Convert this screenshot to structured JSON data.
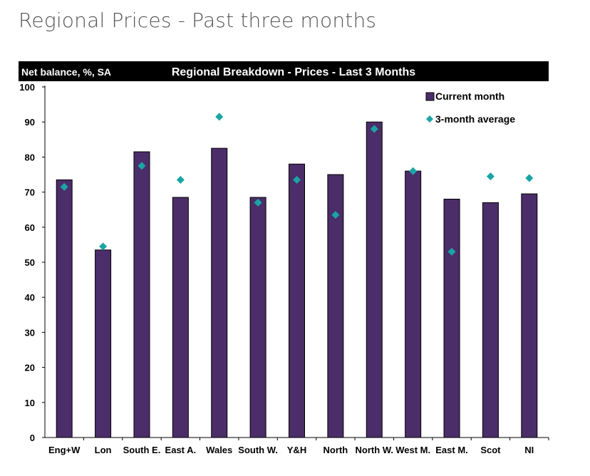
{
  "page_title": "Regional Prices - Past three months",
  "chart_data": {
    "type": "bar",
    "title": "Regional Breakdown - Prices - Last 3 Months",
    "ylabel": "Net balance, %, SA",
    "xlabel": "",
    "ylim": [
      0,
      100
    ],
    "yticks": [
      0,
      10,
      20,
      30,
      40,
      50,
      60,
      70,
      80,
      90,
      100
    ],
    "grid": false,
    "legend_position": "top-right",
    "categories": [
      "Eng+W",
      "Lon",
      "South E.",
      "East A.",
      "Wales",
      "South W.",
      "Y&H",
      "North",
      "North W.",
      "West M.",
      "East M.",
      "Scot",
      "NI"
    ],
    "series": [
      {
        "name": "Current month",
        "kind": "bar",
        "color": "#4b2d69",
        "values": [
          73.5,
          53.5,
          81.5,
          68.5,
          82.5,
          68.5,
          78,
          75,
          90,
          76,
          68,
          67,
          69.5
        ]
      },
      {
        "name": "3-month average",
        "kind": "marker",
        "marker": "diamond",
        "color": "#1aa5a5",
        "values": [
          71.5,
          54.5,
          77.5,
          73.5,
          91.5,
          67,
          73.5,
          63.5,
          88,
          76,
          53,
          74.5,
          74
        ]
      }
    ]
  }
}
